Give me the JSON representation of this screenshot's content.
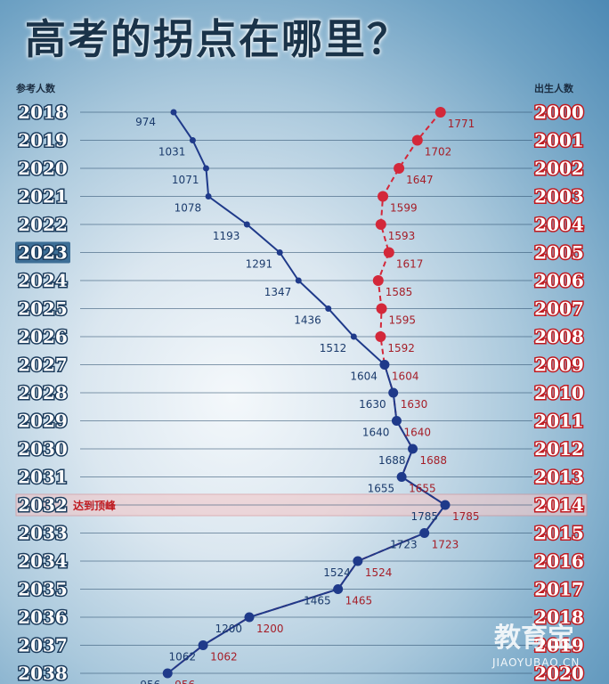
{
  "title": "高考的拐点在哪里？",
  "left_header": "参考人数",
  "right_header": "出生人数",
  "peak_note": "达到顶峰",
  "watermark": {
    "main": "教育宝",
    "url": "JIAOYUBAO.CN"
  },
  "colors": {
    "exam_line": "#1f3a8a",
    "birth_line": "#d3283a",
    "peak_band": "#f2c7c8"
  },
  "chart_data": {
    "type": "line",
    "grid": true,
    "series": [
      {
        "name": "参考人数",
        "years": [
          "2018",
          "2019",
          "2020",
          "2021",
          "2022",
          "2023",
          "2024",
          "2025",
          "2026",
          "2027",
          "2028",
          "2029",
          "2030",
          "2031",
          "2032",
          "2033",
          "2034",
          "2035",
          "2036",
          "2037",
          "2038"
        ],
        "values": [
          974,
          1031,
          1071,
          1078,
          1193,
          1291,
          1347,
          1436,
          1512,
          1604,
          1630,
          1640,
          1688,
          1655,
          1785,
          1723,
          1524,
          1465,
          1200,
          1062,
          956
        ]
      },
      {
        "name": "出生人数",
        "years": [
          "2000",
          "2001",
          "2002",
          "2003",
          "2004",
          "2005",
          "2006",
          "2007",
          "2008",
          "2009",
          "2010",
          "2011",
          "2012",
          "2013",
          "2014",
          "2015",
          "2016",
          "2017",
          "2018",
          "2019",
          "2020"
        ],
        "values": [
          1771,
          1702,
          1647,
          1599,
          1593,
          1617,
          1585,
          1595,
          1592,
          1604,
          1630,
          1640,
          1688,
          1655,
          1785,
          1723,
          1524,
          1465,
          1200,
          1062,
          956
        ]
      }
    ],
    "highlight_year": "2032"
  }
}
